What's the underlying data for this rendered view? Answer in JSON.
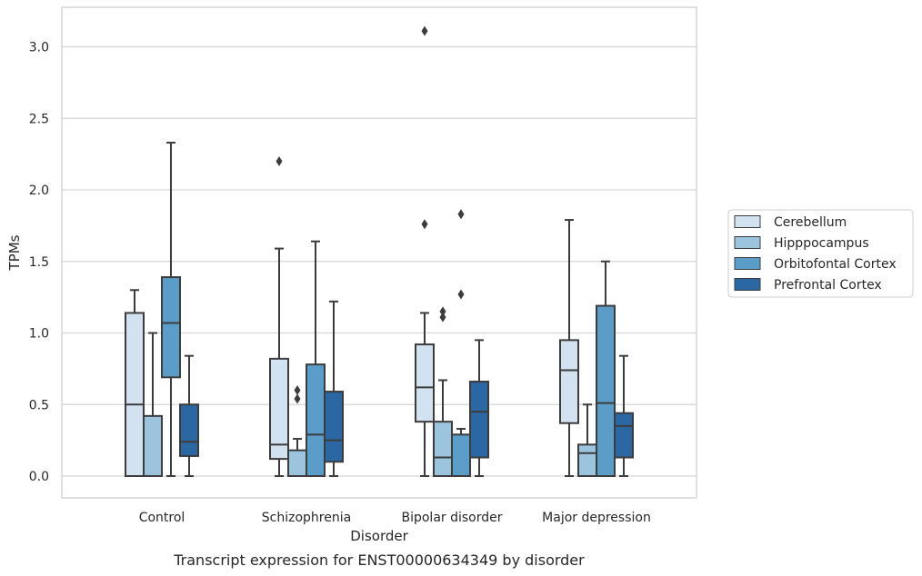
{
  "chart_data": {
    "type": "box",
    "title": "",
    "caption": "Transcript expression for ENST00000634349 by disorder",
    "xlabel": "Disorder",
    "ylabel": "TPMs",
    "ylim": [
      -0.15,
      3.28
    ],
    "yticks": [
      0.0,
      0.5,
      1.0,
      1.5,
      2.0,
      2.5,
      3.0
    ],
    "ytick_labels": [
      "0.0",
      "0.5",
      "1.0",
      "1.5",
      "2.0",
      "2.5",
      "3.0"
    ],
    "grid": "horizontal",
    "legend_position": "right",
    "categories": [
      "Control",
      "Schizophrenia",
      "Bipolar disorder",
      "Major depression"
    ],
    "series": [
      {
        "name": "Cerebellum",
        "color": "#d2e2f0",
        "boxes": [
          {
            "whislo": 0.0,
            "q1": 0.0,
            "med": 0.5,
            "q3": 1.14,
            "whishi": 1.3,
            "fliers": []
          },
          {
            "whislo": 0.0,
            "q1": 0.12,
            "med": 0.22,
            "q3": 0.82,
            "whishi": 1.59,
            "fliers": [
              2.2
            ]
          },
          {
            "whislo": 0.0,
            "q1": 0.38,
            "med": 0.62,
            "q3": 0.92,
            "whishi": 1.14,
            "fliers": [
              1.76,
              3.11
            ]
          },
          {
            "whislo": 0.0,
            "q1": 0.37,
            "med": 0.74,
            "q3": 0.95,
            "whishi": 1.79,
            "fliers": []
          }
        ]
      },
      {
        "name": "Hipppocampus",
        "color": "#9dc4df",
        "boxes": [
          {
            "whislo": 0.0,
            "q1": 0.0,
            "med": 0.0,
            "q3": 0.42,
            "whishi": 1.0,
            "fliers": []
          },
          {
            "whislo": 0.0,
            "q1": 0.0,
            "med": 0.0,
            "q3": 0.18,
            "whishi": 0.26,
            "fliers": [
              0.54,
              0.6
            ]
          },
          {
            "whislo": 0.0,
            "q1": 0.0,
            "med": 0.13,
            "q3": 0.38,
            "whishi": 0.67,
            "fliers": [
              1.11,
              1.15
            ]
          },
          {
            "whislo": 0.0,
            "q1": 0.0,
            "med": 0.16,
            "q3": 0.22,
            "whishi": 0.5,
            "fliers": []
          }
        ]
      },
      {
        "name": "Orbitofontal Cortex",
        "color": "#5a9dc8",
        "boxes": [
          {
            "whislo": 0.0,
            "q1": 0.69,
            "med": 1.07,
            "q3": 1.39,
            "whishi": 2.33,
            "fliers": []
          },
          {
            "whislo": 0.0,
            "q1": 0.0,
            "med": 0.29,
            "q3": 0.78,
            "whishi": 1.64,
            "fliers": []
          },
          {
            "whislo": 0.0,
            "q1": 0.0,
            "med": 0.0,
            "q3": 0.29,
            "whishi": 0.33,
            "fliers": [
              1.27,
              1.83
            ]
          },
          {
            "whislo": 0.0,
            "q1": 0.0,
            "med": 0.51,
            "q3": 1.19,
            "whishi": 1.5,
            "fliers": []
          }
        ]
      },
      {
        "name": "Prefrontal Cortex",
        "color": "#2a67a3",
        "boxes": [
          {
            "whislo": 0.0,
            "q1": 0.14,
            "med": 0.24,
            "q3": 0.5,
            "whishi": 0.84,
            "fliers": []
          },
          {
            "whislo": 0.0,
            "q1": 0.1,
            "med": 0.25,
            "q3": 0.59,
            "whishi": 1.22,
            "fliers": []
          },
          {
            "whislo": 0.0,
            "q1": 0.13,
            "med": 0.45,
            "q3": 0.66,
            "whishi": 0.95,
            "fliers": []
          },
          {
            "whislo": 0.0,
            "q1": 0.13,
            "med": 0.35,
            "q3": 0.44,
            "whishi": 0.84,
            "fliers": []
          }
        ]
      }
    ]
  }
}
